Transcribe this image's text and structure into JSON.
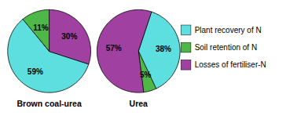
{
  "chart_data": [
    {
      "type": "pie",
      "title": "Brown coal-urea",
      "categories": [
        "Plant recovery of N",
        "Soil retention of N",
        "Losses of fertiliser-N"
      ],
      "values": [
        59,
        11,
        30
      ],
      "value_labels": [
        "59%",
        "11%",
        "30%"
      ],
      "colors": [
        "#5DDFDF",
        "#4DB848",
        "#A040A0"
      ],
      "data_labels": true,
      "legend": "right"
    },
    {
      "type": "pie",
      "title": "Urea",
      "categories": [
        "Plant recovery of N",
        "Soil retention of N",
        "Losses of fertiliser-N"
      ],
      "values": [
        38,
        5,
        57
      ],
      "value_labels": [
        "38%",
        "5%",
        "57%"
      ],
      "colors": [
        "#5DDFDF",
        "#4DB848",
        "#A040A0"
      ],
      "data_labels": true,
      "legend": "right"
    }
  ]
}
